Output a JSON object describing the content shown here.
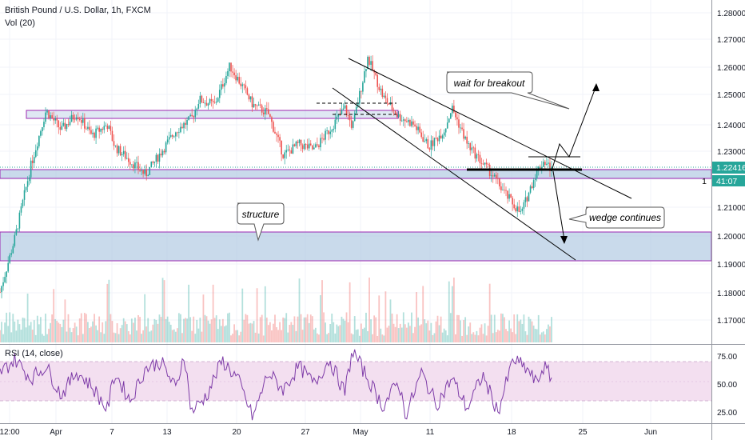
{
  "header": {
    "symbol_title": "British Pound / U.S. Dollar, 1h, FXCM",
    "volume_label": "Vol (20)",
    "rsi_label": "RSI (14, close)"
  },
  "price_label": {
    "value": "1.22416",
    "countdown_prefix": "1",
    "countdown": "41:07"
  },
  "annotations": {
    "breakout": "wait for breakout",
    "structure": "structure",
    "wedge": "wedge continues"
  },
  "colors": {
    "up": "#26a69a",
    "down": "#ef5350",
    "zone_fill": "#b7cde4",
    "zone_border": "#9c27b0",
    "rsi_line": "#7e3ca8",
    "rsi_band": "#f3dff0",
    "price_line": "#26a69a"
  },
  "chart_data": [
    {
      "type": "line",
      "name": "price",
      "x_ticks": [
        "12:00",
        "Apr",
        "7",
        "13",
        "20",
        "27",
        "May",
        "11",
        "18",
        "25",
        "Jun"
      ],
      "y_ticks": [
        "1.28000",
        "1.27000",
        "1.26000",
        "1.25000",
        "1.24000",
        "1.23000",
        "1.22000",
        "1.21000",
        "1.20000",
        "1.19000",
        "1.18000",
        "1.17000"
      ],
      "ylim": [
        1.165,
        1.283
      ],
      "last_price": 1.22416,
      "path": [
        [
          0,
          1.18
        ],
        [
          2,
          1.2
        ],
        [
          4,
          1.225
        ],
        [
          6,
          1.245
        ],
        [
          8,
          1.238
        ],
        [
          10,
          1.244
        ],
        [
          12,
          1.236
        ],
        [
          14,
          1.24
        ],
        [
          15,
          1.232
        ],
        [
          17,
          1.227
        ],
        [
          19,
          1.222
        ],
        [
          21,
          1.23
        ],
        [
          23,
          1.238
        ],
        [
          25,
          1.242
        ],
        [
          26,
          1.249
        ],
        [
          28,
          1.247
        ],
        [
          30,
          1.261
        ],
        [
          32,
          1.252
        ],
        [
          33,
          1.247
        ],
        [
          35,
          1.244
        ],
        [
          37,
          1.229
        ],
        [
          39,
          1.233
        ],
        [
          41,
          1.231
        ],
        [
          43,
          1.238
        ],
        [
          45,
          1.246
        ],
        [
          46,
          1.239
        ],
        [
          48,
          1.264
        ],
        [
          50,
          1.25
        ],
        [
          52,
          1.243
        ],
        [
          54,
          1.24
        ],
        [
          56,
          1.232
        ],
        [
          58,
          1.238
        ],
        [
          59,
          1.246
        ],
        [
          61,
          1.233
        ],
        [
          63,
          1.226
        ],
        [
          64,
          1.223
        ],
        [
          66,
          1.215
        ],
        [
          68,
          1.208
        ],
        [
          70,
          1.223
        ],
        [
          71,
          1.227
        ],
        [
          72,
          1.224
        ]
      ],
      "resistance_zone": [
        1.243,
        1.245
      ],
      "support_zone": [
        1.219,
        1.221
      ],
      "structure_zone": [
        1.191,
        1.201
      ]
    },
    {
      "type": "bar",
      "name": "volume",
      "x_range": [
        0,
        72
      ]
    },
    {
      "type": "line",
      "name": "rsi",
      "y_ticks": [
        "75.00",
        "50.00",
        "25.00"
      ],
      "ylim": [
        15,
        85
      ],
      "band": [
        30,
        70
      ],
      "path": [
        [
          0,
          60
        ],
        [
          2,
          72
        ],
        [
          4,
          55
        ],
        [
          6,
          66
        ],
        [
          8,
          40
        ],
        [
          10,
          61
        ],
        [
          12,
          48
        ],
        [
          14,
          27
        ],
        [
          15,
          60
        ],
        [
          17,
          35
        ],
        [
          19,
          64
        ],
        [
          21,
          70
        ],
        [
          23,
          45
        ],
        [
          24,
          78
        ],
        [
          25,
          25
        ],
        [
          27,
          40
        ],
        [
          29,
          71
        ],
        [
          31,
          55
        ],
        [
          33,
          20
        ],
        [
          35,
          60
        ],
        [
          37,
          45
        ],
        [
          39,
          66
        ],
        [
          41,
          50
        ],
        [
          43,
          72
        ],
        [
          45,
          42
        ],
        [
          46,
          80
        ],
        [
          48,
          55
        ],
        [
          50,
          30
        ],
        [
          52,
          52
        ],
        [
          53,
          22
        ],
        [
          55,
          60
        ],
        [
          57,
          32
        ],
        [
          59,
          55
        ],
        [
          61,
          28
        ],
        [
          63,
          58
        ],
        [
          65,
          25
        ],
        [
          67,
          72
        ],
        [
          69,
          62
        ],
        [
          70,
          50
        ],
        [
          71,
          66
        ],
        [
          72,
          55
        ]
      ]
    }
  ]
}
